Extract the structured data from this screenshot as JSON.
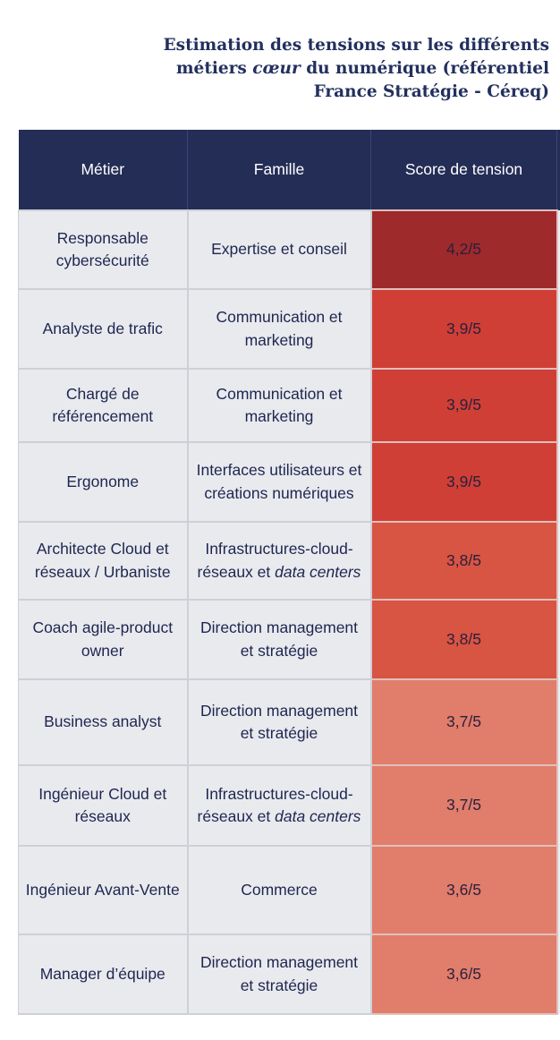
{
  "title": {
    "line1": "Estimation des tensions sur les différents",
    "line2_pre": "métiers ",
    "line2_em": "cœur",
    "line2_post": " du numérique (référentiel",
    "line3": "France Stratégie - Céreq)"
  },
  "table": {
    "headers": [
      "Métier",
      "Famille",
      "Score de tension"
    ],
    "rows": [
      {
        "metier": "Responsable cybersécurité",
        "famille": "Expertise et conseil",
        "famille_em": "",
        "score": "4,2/5",
        "value": 4.2,
        "color": "#9e2a2b"
      },
      {
        "metier": "Analyste de trafic",
        "famille": "Communication et marketing",
        "famille_em": "",
        "score": "3,9/5",
        "value": 3.9,
        "color": "#cf3f36"
      },
      {
        "metier": "Chargé de référencement",
        "famille": "Communication et marketing",
        "famille_em": "",
        "score": "3,9/5",
        "value": 3.9,
        "color": "#cf3f36"
      },
      {
        "metier": "Ergonome",
        "famille": "Interfaces utilisateurs et créations numériques",
        "famille_em": "",
        "score": "3,9/5",
        "value": 3.9,
        "color": "#cf3f36"
      },
      {
        "metier": "Architecte Cloud et réseaux / Urbaniste",
        "famille": "Infrastructures-cloud-réseaux et ",
        "famille_em": "data centers",
        "score": "3,8/5",
        "value": 3.8,
        "color": "#d85443"
      },
      {
        "metier": "Coach agile-product owner",
        "famille": "Direction management et stratégie",
        "famille_em": "",
        "score": "3,8/5",
        "value": 3.8,
        "color": "#d85443"
      },
      {
        "metier": "Business analyst",
        "famille": "Direction management et stratégie",
        "famille_em": "",
        "score": "3,7/5",
        "value": 3.7,
        "color": "#e07d6b"
      },
      {
        "metier": "Ingénieur Cloud et réseaux",
        "famille": "Infrastructures-cloud-réseaux et ",
        "famille_em": "data centers",
        "score": "3,7/5",
        "value": 3.7,
        "color": "#e07d6b"
      },
      {
        "metier": "Ingénieur Avant-Vente",
        "famille": "Commerce",
        "famille_em": "",
        "score": "3,6/5",
        "value": 3.6,
        "color": "#e07d6b"
      },
      {
        "metier": "Manager d’équipe",
        "famille": "Direction management et stratégie",
        "famille_em": "",
        "score": "3,6/5",
        "value": 3.6,
        "color": "#e07d6b"
      }
    ]
  },
  "colors": {
    "header_bg": "#232d56",
    "title_text": "#22305e",
    "cell_bg": "#e9eaee"
  }
}
